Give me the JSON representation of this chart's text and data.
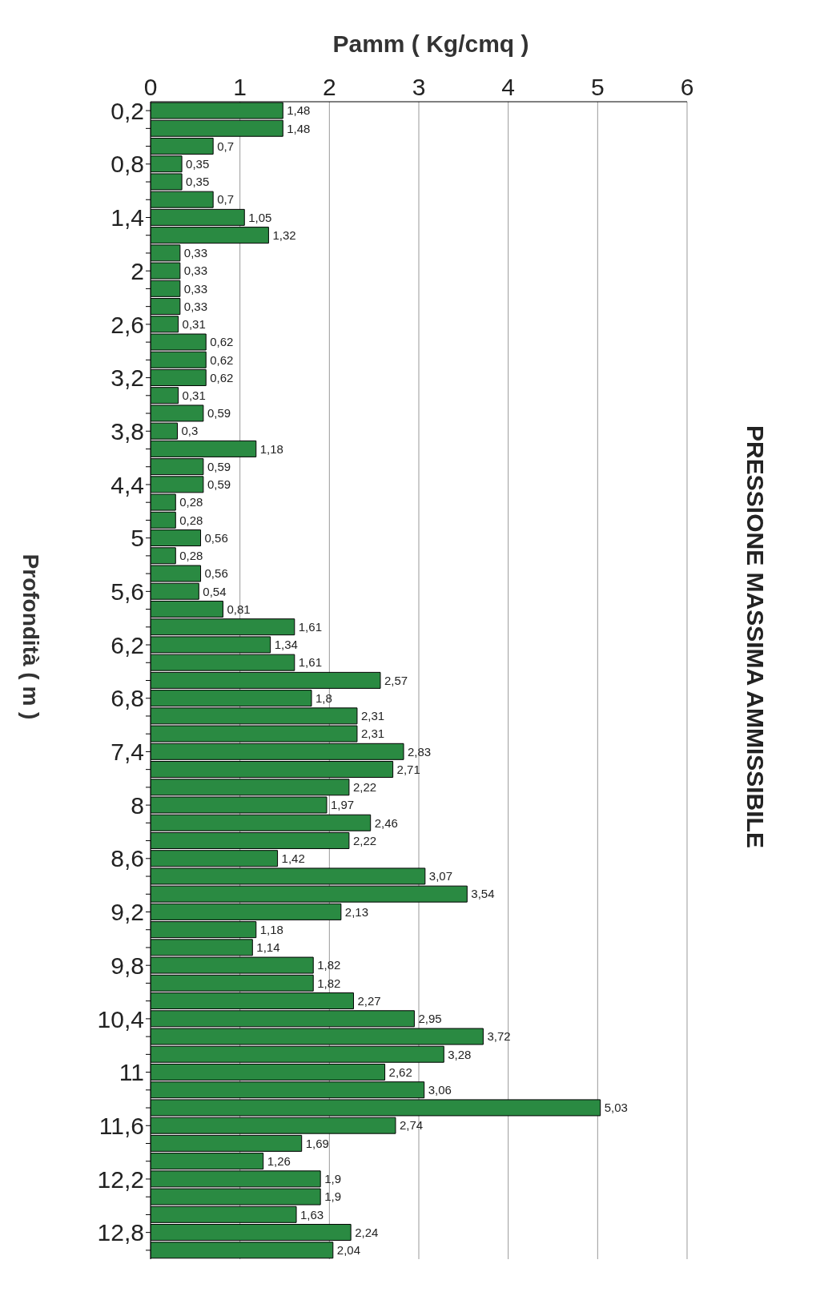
{
  "chart_data": {
    "type": "bar",
    "orientation": "horizontal",
    "title": "PRESSIONE MASSIMA AMMISSIBILE",
    "xlabel": "Pamm ( Kg/cmq )",
    "ylabel": "Profondità ( m )",
    "categories": [
      "0,2",
      null,
      null,
      "0,8",
      null,
      null,
      "1,4",
      null,
      null,
      "2",
      null,
      null,
      "2,6",
      null,
      null,
      "3,2",
      null,
      null,
      "3,8",
      null,
      null,
      "4,4",
      null,
      null,
      "5",
      null,
      null,
      "5,6",
      null,
      null,
      "6,2",
      null,
      null,
      "6,8",
      null,
      null,
      "7,4",
      null,
      null,
      "8",
      null,
      null,
      "8,6",
      null,
      null,
      "9,2",
      null,
      null,
      "9,8",
      null,
      null,
      "10,4",
      null,
      null,
      "11",
      null,
      null,
      "11,6",
      null,
      null,
      "12,2",
      null,
      null,
      "12,8",
      null
    ],
    "values": [
      1.48,
      1.48,
      0.7,
      0.35,
      0.35,
      0.7,
      1.05,
      1.32,
      0.33,
      0.33,
      0.33,
      0.33,
      0.31,
      0.62,
      0.62,
      0.62,
      0.31,
      0.59,
      0.3,
      1.18,
      0.59,
      0.59,
      0.28,
      0.28,
      0.56,
      0.28,
      0.56,
      0.54,
      0.81,
      1.61,
      1.34,
      1.61,
      2.57,
      1.8,
      2.31,
      2.31,
      2.83,
      2.71,
      2.22,
      1.97,
      2.46,
      2.22,
      1.42,
      3.07,
      3.54,
      2.13,
      1.18,
      1.14,
      1.82,
      1.82,
      2.27,
      2.95,
      3.72,
      3.28,
      2.62,
      3.06,
      5.03,
      2.74,
      1.69,
      1.26,
      1.9,
      1.9,
      1.63,
      2.24,
      2.04
    ],
    "value_labels": [
      "1,48",
      "1,48",
      "0,7",
      "0,35",
      "0,35",
      "0,7",
      "1,05",
      "1,32",
      "0,33",
      "0,33",
      "0,33",
      "0,33",
      "0,31",
      "0,62",
      "0,62",
      "0,62",
      "0,31",
      "0,59",
      "0,3",
      "1,18",
      "0,59",
      "0,59",
      "0,28",
      "0,28",
      "0,56",
      "0,28",
      "0,56",
      "0,54",
      "0,81",
      "1,61",
      "1,34",
      "1,61",
      "2,57",
      "1,8",
      "2,31",
      "2,31",
      "2,83",
      "2,71",
      "2,22",
      "1,97",
      "2,46",
      "2,22",
      "1,42",
      "3,07",
      "3,54",
      "2,13",
      "1,18",
      "1,14",
      "1,82",
      "1,82",
      "2,27",
      "2,95",
      "3,72",
      "3,28",
      "2,62",
      "3,06",
      "5,03",
      "2,74",
      "1,69",
      "1,26",
      "1,9",
      "1,9",
      "1,63",
      "2,24",
      "2,04"
    ],
    "color": "#2a8a42",
    "xlim": [
      0,
      6
    ],
    "xticks": [
      0,
      1,
      2,
      3,
      4,
      5,
      6
    ],
    "grid": "x"
  }
}
